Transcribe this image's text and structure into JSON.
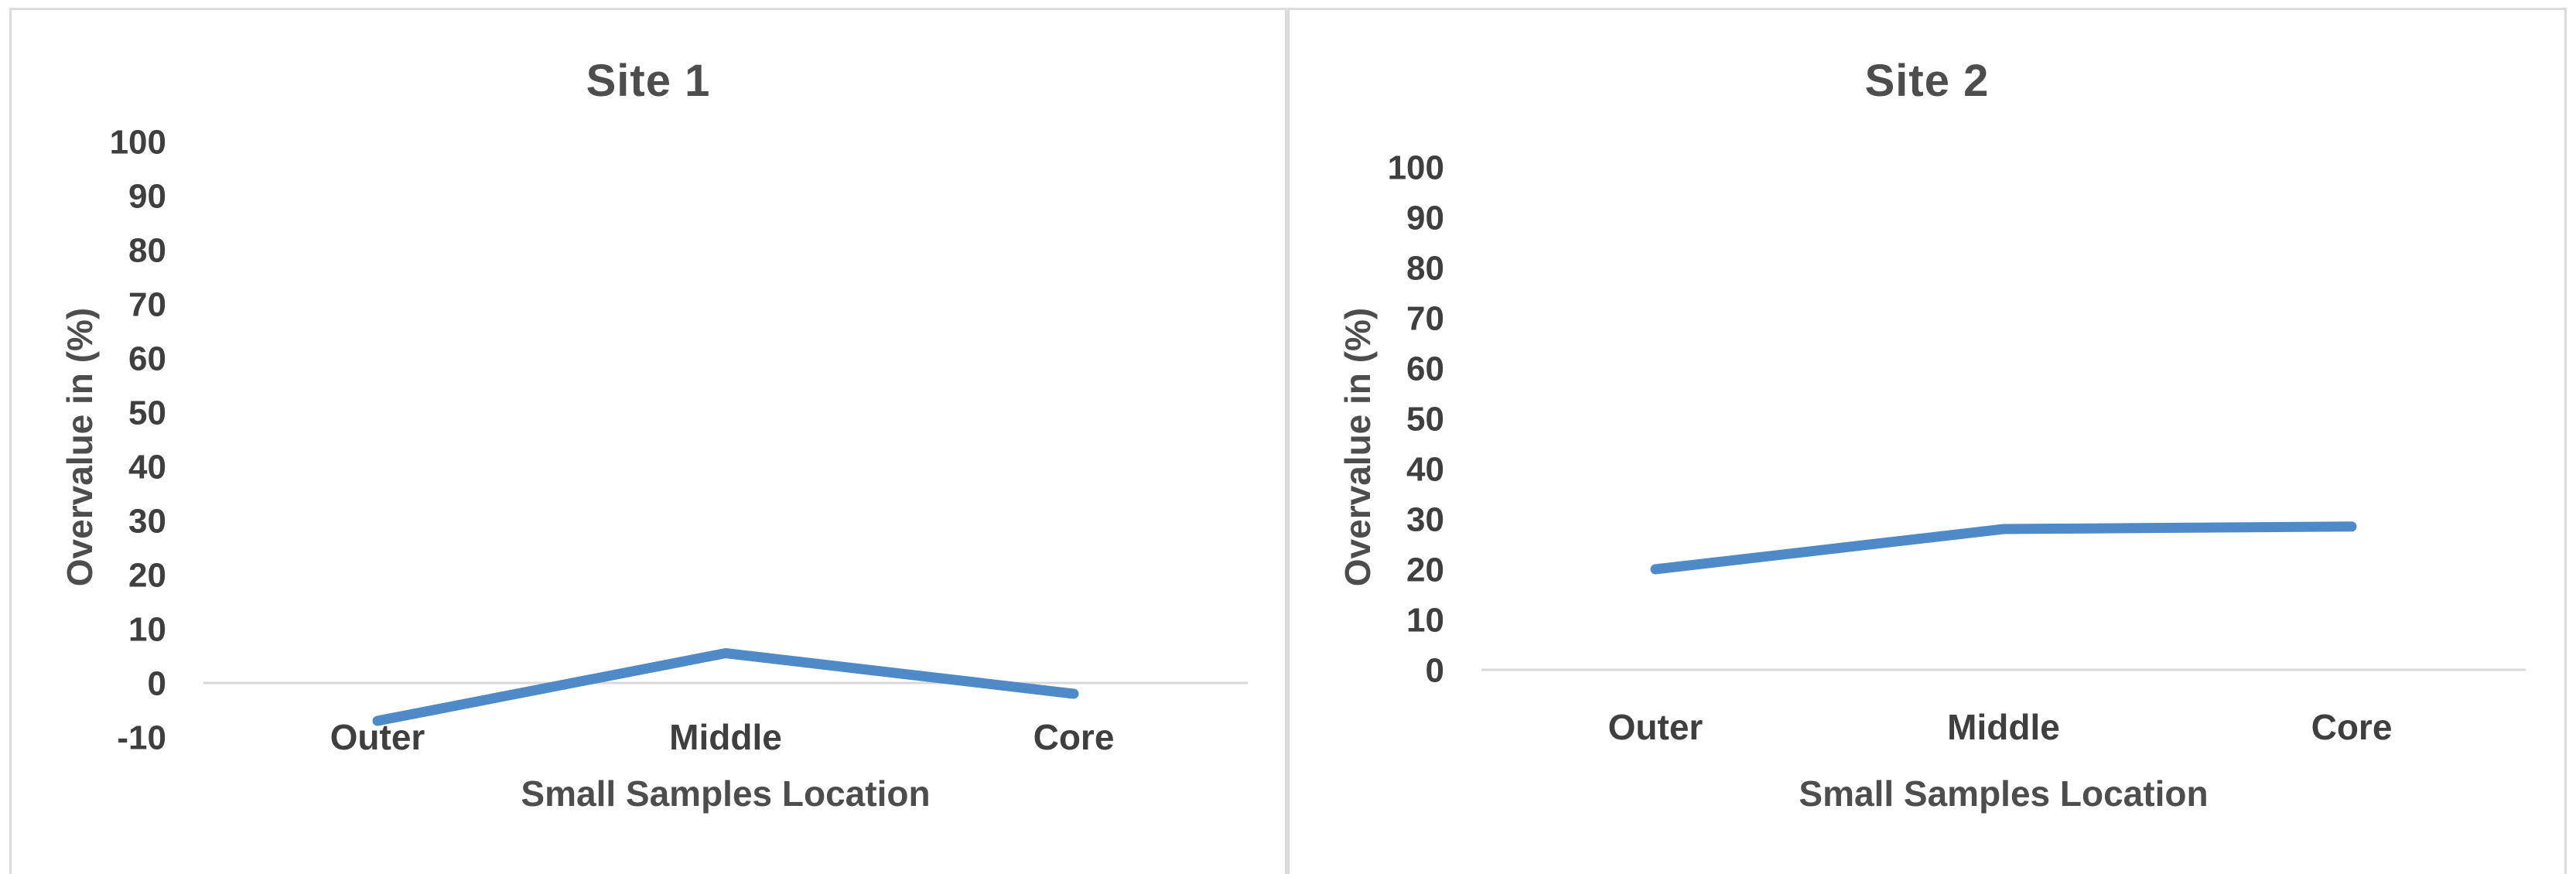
{
  "figure": {
    "background_color": "#ffffff",
    "panel_border_color": "#dcdcdc"
  },
  "chart_data": [
    {
      "type": "line",
      "title": "Site 1",
      "categories": [
        "Outer",
        "Middle",
        "Core"
      ],
      "series": [
        {
          "name": "Site 1",
          "values": [
            -7,
            5.5,
            -2
          ]
        }
      ],
      "xlabel": "Small Samples Location",
      "ylabel": "Overvalue in (%)",
      "ylim": [
        -10,
        100
      ],
      "yticks": [
        -10,
        0,
        10,
        20,
        30,
        40,
        50,
        60,
        70,
        80,
        90,
        100
      ],
      "grid": false,
      "legend": "none",
      "line_color": "#4e8ac8",
      "axis_line_color": "#d9d9d9",
      "tick_label_color": "#3f3f3f",
      "title_color": "#4d4d4d"
    },
    {
      "type": "line",
      "title": "Site 2",
      "categories": [
        "Outer",
        "Middle",
        "Core"
      ],
      "series": [
        {
          "name": "Site 2",
          "values": [
            20,
            28,
            28.5
          ]
        }
      ],
      "xlabel": "Small Samples Location",
      "ylabel": "Overvalue in (%)",
      "ylim": [
        0,
        100
      ],
      "yticks": [
        0,
        10,
        20,
        30,
        40,
        50,
        60,
        70,
        80,
        90,
        100
      ],
      "grid": false,
      "legend": "none",
      "line_color": "#4e8ac8",
      "axis_line_color": "#d9d9d9",
      "tick_label_color": "#3f3f3f",
      "title_color": "#4d4d4d"
    }
  ]
}
